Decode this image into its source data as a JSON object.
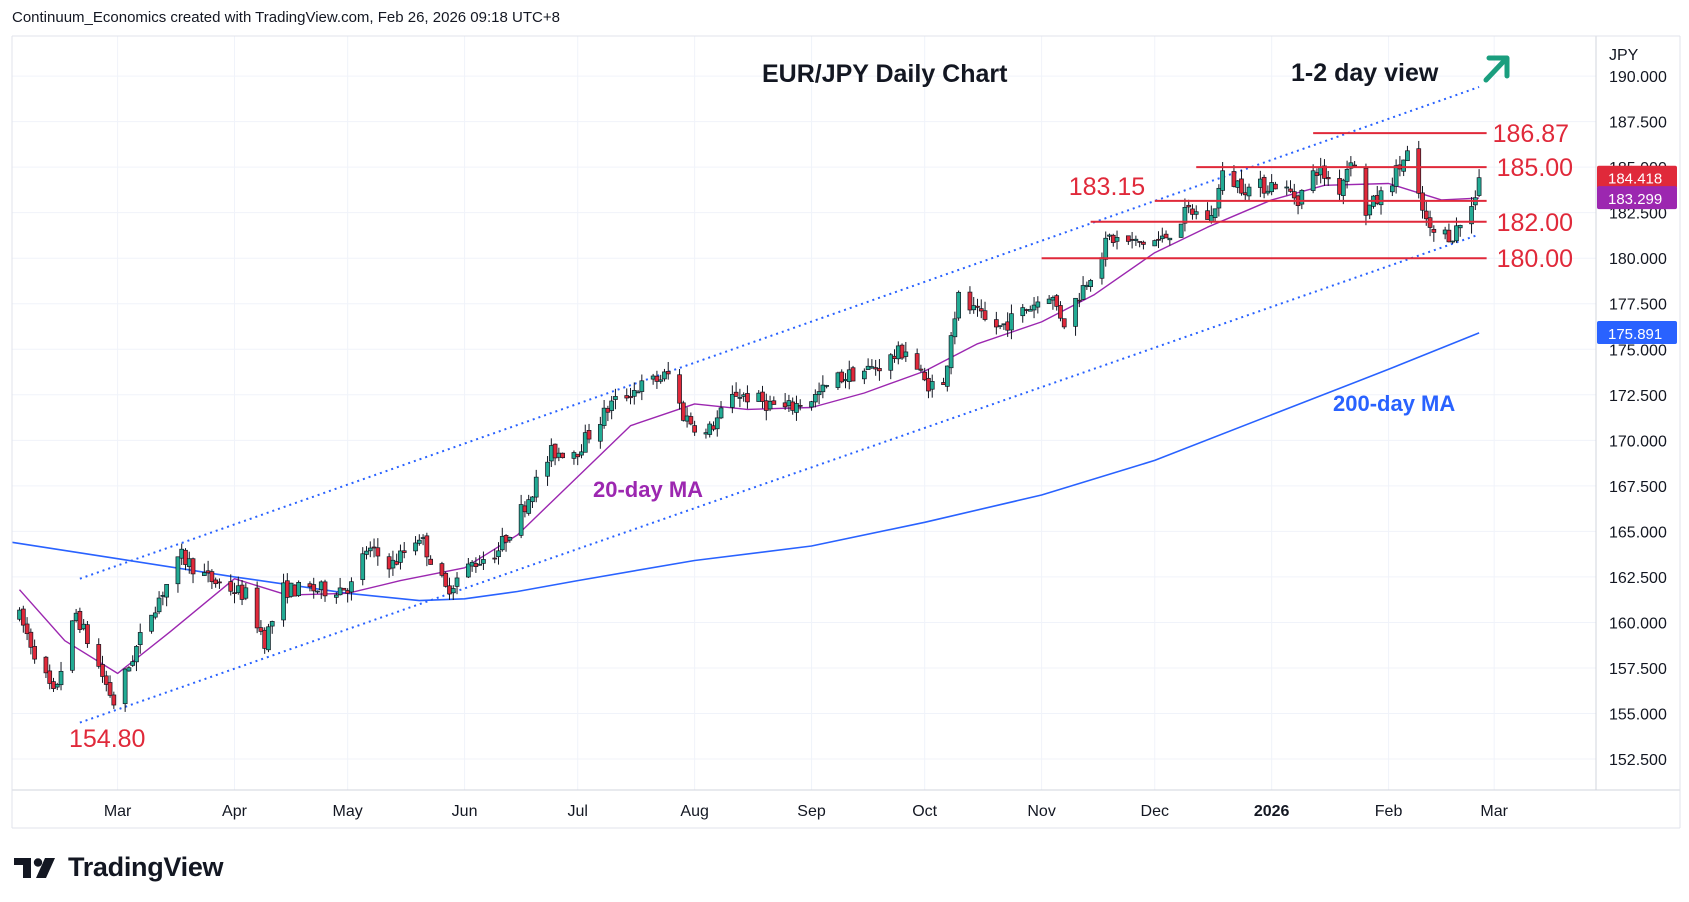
{
  "header": {
    "attribution": "Continuum_Economics created with TradingView.com, Feb 26, 2026 09:18 UTC+8"
  },
  "brand": {
    "name": "TradingView"
  },
  "colors": {
    "up": "#22ab94",
    "down": "#e0293a",
    "ma20": "#9c27b0",
    "ma200": "#2962ff",
    "level": "#e0293a",
    "channel": "#2962ff",
    "arrow": "#1a9e7e"
  },
  "chart_data": {
    "type": "candlestick",
    "title": "EUR/JPY Daily Chart",
    "view_label": "1-2 day view",
    "view_direction": "up",
    "currency_label": "JPY",
    "y_ticks": [
      "190.000",
      "187.500",
      "185.000",
      "182.500",
      "180.000",
      "177.500",
      "175.000",
      "172.500",
      "170.000",
      "167.500",
      "165.000",
      "162.500",
      "160.000",
      "157.500",
      "155.000",
      "152.500"
    ],
    "ylim": [
      150.8,
      192.2
    ],
    "x_ticks": [
      "Mar",
      "Apr",
      "May",
      "Jun",
      "Jul",
      "Aug",
      "Sep",
      "Oct",
      "Nov",
      "Dec",
      "2026",
      "Feb",
      "Mar"
    ],
    "x_tick_dates": [
      "2025-03-01",
      "2025-04-01",
      "2025-05-01",
      "2025-06-01",
      "2025-07-01",
      "2025-08-01",
      "2025-09-01",
      "2025-10-01",
      "2025-11-01",
      "2025-12-01",
      "2026-01-01",
      "2026-02-01",
      "2026-03-01"
    ],
    "xlim": [
      "2025-02-01",
      "2026-03-28"
    ],
    "price_tags": [
      {
        "value": "184.418",
        "color": "#e0293a"
      },
      {
        "value": "183.299",
        "color": "#9c27b0"
      },
      {
        "value": "175.891",
        "color": "#2962ff"
      }
    ],
    "levels": [
      {
        "value": 186.87,
        "label": "186.87",
        "from": "2026-01-12",
        "to": "2026-02-27"
      },
      {
        "value": 185.0,
        "label": "185.00",
        "from": "2025-12-12",
        "to": "2026-02-27"
      },
      {
        "value": 183.15,
        "label": "183.15",
        "from": "2025-12-01",
        "to": "2026-02-27"
      },
      {
        "value": 182.0,
        "label": "182.00",
        "from": "2025-11-14",
        "to": "2026-02-27"
      },
      {
        "value": 180.0,
        "label": "180.00",
        "from": "2025-11-01",
        "to": "2026-02-27"
      }
    ],
    "low_label": {
      "value": 154.8,
      "label": "154.80",
      "date": "2025-02-28"
    },
    "channel": {
      "upper": [
        [
          "2025-02-19",
          162.4
        ],
        [
          "2026-02-25",
          189.4
        ]
      ],
      "lower": [
        [
          "2025-02-19",
          154.5
        ],
        [
          "2026-02-25",
          181.3
        ]
      ]
    },
    "ma_labels": [
      {
        "name": "20-day MA",
        "color": "#9c27b0"
      },
      {
        "name": "200-day MA",
        "color": "#2962ff"
      }
    ],
    "anchors": [
      [
        "2025-02-03",
        160.3
      ],
      [
        "2025-02-12",
        156.0
      ],
      [
        "2025-02-18",
        160.5
      ],
      [
        "2025-02-28",
        155.6
      ],
      [
        "2025-03-10",
        160.6
      ],
      [
        "2025-03-18",
        163.6
      ],
      [
        "2025-03-25",
        162.4
      ],
      [
        "2025-04-04",
        161.5
      ],
      [
        "2025-04-09",
        159.0
      ],
      [
        "2025-04-14",
        161.8
      ],
      [
        "2025-04-25",
        161.8
      ],
      [
        "2025-05-02",
        162.0
      ],
      [
        "2025-05-06",
        164.0
      ],
      [
        "2025-05-13",
        163.2
      ],
      [
        "2025-05-20",
        164.8
      ],
      [
        "2025-05-27",
        161.8
      ],
      [
        "2025-06-03",
        163.2
      ],
      [
        "2025-06-10",
        164.0
      ],
      [
        "2025-06-17",
        166.5
      ],
      [
        "2025-06-24",
        169.3
      ],
      [
        "2025-07-01",
        169.5
      ],
      [
        "2025-07-10",
        172.0
      ],
      [
        "2025-07-17",
        172.9
      ],
      [
        "2025-07-25",
        173.6
      ],
      [
        "2025-07-29",
        171.4
      ],
      [
        "2025-08-04",
        170.3
      ],
      [
        "2025-08-12",
        172.6
      ],
      [
        "2025-08-25",
        171.7
      ],
      [
        "2025-09-02",
        172.4
      ],
      [
        "2025-09-08",
        173.4
      ],
      [
        "2025-09-18",
        174.0
      ],
      [
        "2025-09-26",
        175.0
      ],
      [
        "2025-10-01",
        173.2
      ],
      [
        "2025-10-06",
        172.9
      ],
      [
        "2025-10-08",
        176.0
      ],
      [
        "2025-10-10",
        177.8
      ],
      [
        "2025-10-17",
        176.5
      ],
      [
        "2025-10-21",
        176.2
      ],
      [
        "2025-10-28",
        177.2
      ],
      [
        "2025-11-03",
        178.1
      ],
      [
        "2025-11-07",
        176.5
      ],
      [
        "2025-11-14",
        179.2
      ],
      [
        "2025-11-19",
        181.1
      ],
      [
        "2025-11-26",
        180.8
      ],
      [
        "2025-12-03",
        181.0
      ],
      [
        "2025-12-10",
        182.6
      ],
      [
        "2025-12-16",
        182.2
      ],
      [
        "2025-12-19",
        184.5
      ],
      [
        "2025-12-26",
        183.8
      ],
      [
        "2026-01-02",
        184.1
      ],
      [
        "2026-01-08",
        183.3
      ],
      [
        "2026-01-13",
        184.9
      ],
      [
        "2026-01-19",
        183.8
      ],
      [
        "2026-01-22",
        185.6
      ],
      [
        "2026-01-26",
        182.6
      ],
      [
        "2026-01-30",
        183.4
      ],
      [
        "2026-02-06",
        185.7
      ],
      [
        "2026-02-09",
        183.2
      ],
      [
        "2026-02-12",
        181.4
      ],
      [
        "2026-02-18",
        181.3
      ],
      [
        "2026-02-23",
        182.8
      ],
      [
        "2026-02-25",
        184.4
      ]
    ],
    "ma20": [
      [
        "2025-02-03",
        161.8
      ],
      [
        "2025-02-15",
        159.0
      ],
      [
        "2025-03-01",
        157.2
      ],
      [
        "2025-03-15",
        159.5
      ],
      [
        "2025-04-01",
        162.4
      ],
      [
        "2025-04-15",
        161.5
      ],
      [
        "2025-05-01",
        161.6
      ],
      [
        "2025-05-15",
        162.3
      ],
      [
        "2025-06-01",
        163.0
      ],
      [
        "2025-06-15",
        164.8
      ],
      [
        "2025-07-01",
        168.0
      ],
      [
        "2025-07-15",
        170.8
      ],
      [
        "2025-08-01",
        172.0
      ],
      [
        "2025-08-15",
        171.7
      ],
      [
        "2025-09-01",
        171.8
      ],
      [
        "2025-09-15",
        172.6
      ],
      [
        "2025-10-01",
        173.8
      ],
      [
        "2025-10-15",
        175.3
      ],
      [
        "2025-11-01",
        176.5
      ],
      [
        "2025-11-15",
        178.0
      ],
      [
        "2025-12-01",
        180.3
      ],
      [
        "2025-12-15",
        181.7
      ],
      [
        "2026-01-01",
        183.2
      ],
      [
        "2026-01-15",
        184.0
      ],
      [
        "2026-02-01",
        184.1
      ],
      [
        "2026-02-15",
        183.2
      ],
      [
        "2026-02-25",
        183.3
      ]
    ],
    "ma200": [
      [
        "2025-02-01",
        164.4
      ],
      [
        "2025-03-01",
        163.5
      ],
      [
        "2025-04-01",
        162.5
      ],
      [
        "2025-05-01",
        161.6
      ],
      [
        "2025-05-20",
        161.2
      ],
      [
        "2025-06-01",
        161.3
      ],
      [
        "2025-06-15",
        161.7
      ],
      [
        "2025-07-01",
        162.3
      ],
      [
        "2025-08-01",
        163.4
      ],
      [
        "2025-09-01",
        164.2
      ],
      [
        "2025-10-01",
        165.5
      ],
      [
        "2025-11-01",
        167.0
      ],
      [
        "2025-12-01",
        168.9
      ],
      [
        "2026-01-01",
        171.4
      ],
      [
        "2026-02-01",
        173.9
      ],
      [
        "2026-02-25",
        175.9
      ]
    ]
  }
}
